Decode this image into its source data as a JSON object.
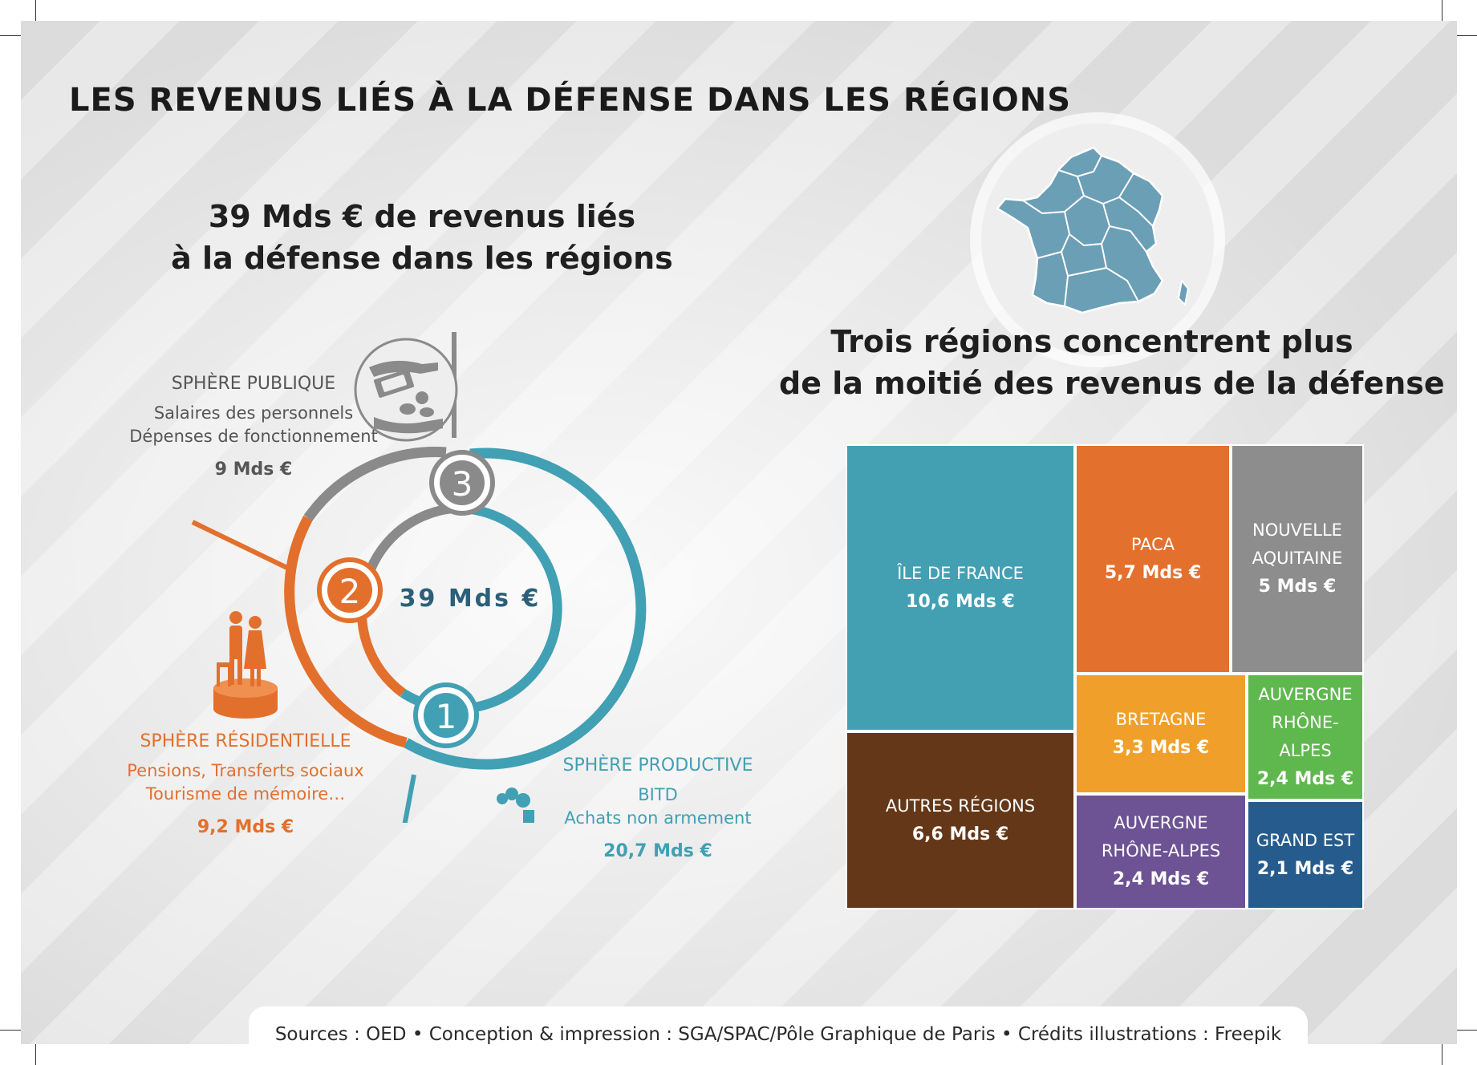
{
  "title": "LES REVENUS LIÉS À LA DÉFENSE DANS LES RÉGIONS",
  "left": {
    "headline": [
      "39 Mds € de revenus liés",
      "à la défense dans les régions"
    ],
    "center_total": "39 Mds €",
    "ring_numbers": [
      "1",
      "2",
      "3"
    ],
    "spheres": {
      "publique": {
        "heading": "SPHÈRE PUBLIQUE",
        "details": [
          "Salaires des personnels",
          "Dépenses de fonctionnement"
        ],
        "amount": "9 Mds €"
      },
      "residentielle": {
        "heading": "SPHÈRE RÉSIDENTIELLE",
        "details": [
          "Pensions, Transferts sociaux",
          "Tourisme de mémoire…"
        ],
        "amount": "9,2 Mds €"
      },
      "productive": {
        "heading": "SPHÈRE PRODUCTIVE",
        "details": [
          "BITD",
          "Achats non armement"
        ],
        "amount": "20,7 Mds €"
      }
    }
  },
  "right": {
    "headline": [
      "Trois régions concentrent plus",
      "de la moitié des revenus de la défense"
    ]
  },
  "colors": {
    "teal": "#41a0b3",
    "orange": "#e2702c",
    "gray": "#8a8a8a",
    "dark_gray": "#5a5a5a",
    "navy": "#2b5f7a",
    "map_fill": "#6b9fb6"
  },
  "chart_data": [
    {
      "type": "pie",
      "title": "39 Mds € de revenus liés à la défense dans les régions",
      "unit": "Mds €",
      "categories": [
        "SPHÈRE PRODUCTIVE",
        "SPHÈRE RÉSIDENTIELLE",
        "SPHÈRE PUBLIQUE"
      ],
      "values": [
        20.7,
        9.2,
        9
      ],
      "colors": [
        "#41a0b3",
        "#e2702c",
        "#8a8a8a"
      ]
    },
    {
      "type": "treemap",
      "title": "Trois régions concentrent plus de la moitié des revenus de la défense",
      "unit": "Mds €",
      "items": [
        {
          "name": "ÎLE DE FRANCE",
          "value": 10.6,
          "label": "10,6 Mds €",
          "color": "#43a0b2"
        },
        {
          "name": "AUTRES RÉGIONS",
          "value": 6.6,
          "label": "6,6 Mds €",
          "color": "#633717"
        },
        {
          "name": "PACA",
          "value": 5.7,
          "label": "5,7 Mds €",
          "color": "#e3712d"
        },
        {
          "name": "NOUVELLE AQUITAINE",
          "value": 5,
          "label": "5 Mds €",
          "color": "#8d8d8d"
        },
        {
          "name": "BRETAGNE",
          "value": 3.3,
          "label": "3,3 Mds €",
          "color": "#f0a02a"
        },
        {
          "name": "AUVERGNE RHÔNE-ALPES",
          "value": 2.4,
          "label": "2,4 Mds €",
          "color": "#5fb84e"
        },
        {
          "name": "AUVERGNE RHÔNE-ALPES",
          "value": 2.4,
          "label": "2,4 Mds €",
          "color": "#6d5294"
        },
        {
          "name": "GRAND EST",
          "value": 2.1,
          "label": "2,1 Mds €",
          "color": "#265c8d"
        }
      ]
    }
  ],
  "treemap_labels": [
    {
      "name": "ÎLE DE FRANCE",
      "amount": "10,6 Mds €"
    },
    {
      "name": "AUTRES RÉGIONS",
      "amount": "6,6 Mds €"
    },
    {
      "name": "PACA",
      "amount": "5,7 Mds €"
    },
    {
      "name": "NOUVELLE\nAQUITAINE",
      "amount": "5 Mds €"
    },
    {
      "name": "BRETAGNE",
      "amount": "3,3 Mds €"
    },
    {
      "name": "AUVERGNE\nRHÔNE-ALPES",
      "amount": "2,4 Mds €"
    },
    {
      "name": "AUVERGNE\nRHÔNE-ALPES",
      "amount": "2,4 Mds €"
    },
    {
      "name": "GRAND EST",
      "amount": "2,1 Mds €"
    }
  ],
  "footer": "Sources : OED • Conception & impression : SGA/SPAC/Pôle Graphique de Paris • Crédits illustrations : Freepik"
}
